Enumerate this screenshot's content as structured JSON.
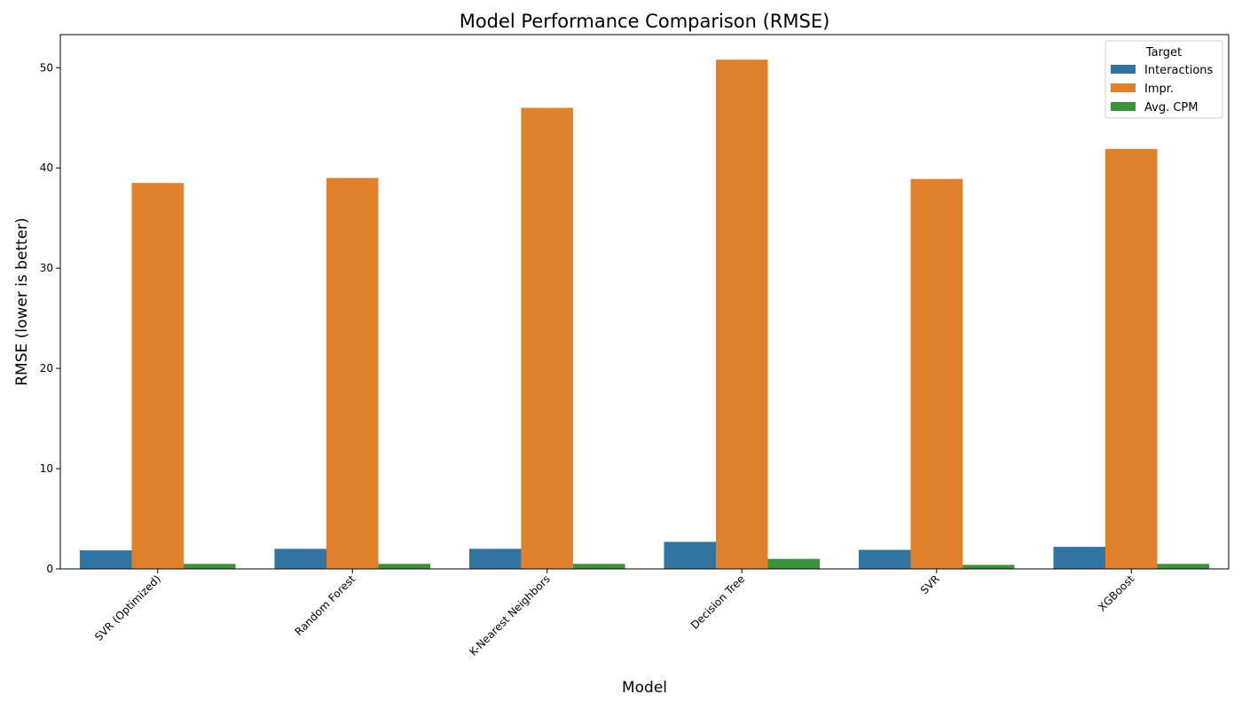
{
  "chart_data": {
    "type": "bar",
    "title": "Model Performance Comparison (RMSE)",
    "xlabel": "Model",
    "ylabel": "RMSE (lower is better)",
    "categories": [
      "SVR (Optimized)",
      "Random Forest",
      "K-Nearest Neighbors",
      "Decision Tree",
      "SVR",
      "XGBoost"
    ],
    "series": [
      {
        "name": "Interactions",
        "color": "#3274a1",
        "values": [
          1.85,
          2.0,
          2.0,
          2.7,
          1.9,
          2.2
        ]
      },
      {
        "name": "Impr.",
        "color": "#e1812c",
        "values": [
          38.5,
          39.0,
          46.0,
          50.8,
          38.9,
          41.9
        ]
      },
      {
        "name": "Avg. CPM",
        "color": "#3a923a",
        "values": [
          0.5,
          0.5,
          0.5,
          1.0,
          0.4,
          0.5
        ]
      }
    ],
    "ylim": [
      0,
      53.3
    ],
    "yticks": [
      0,
      10,
      20,
      30,
      40,
      50
    ],
    "grid": false,
    "legend": {
      "title": "Target",
      "placement": "top-right"
    }
  }
}
